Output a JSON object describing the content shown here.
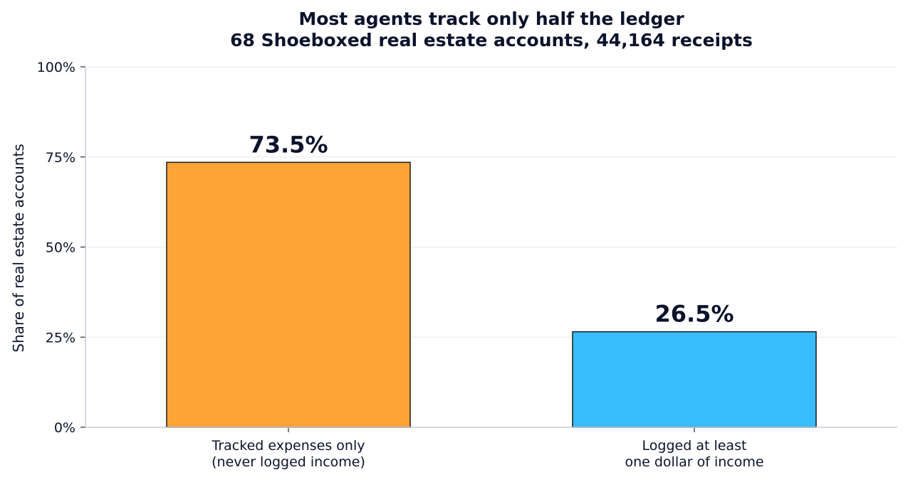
{
  "chart_data": {
    "type": "bar",
    "title": "Most agents track only half the ledger",
    "subtitle": "68 Shoeboxed real estate accounts, 44,164 receipts",
    "xlabel": "",
    "ylabel": "Share of real estate accounts",
    "ylim": [
      0,
      100
    ],
    "yticks": [
      0,
      25,
      50,
      75,
      100
    ],
    "ytick_labels": [
      "0%",
      "25%",
      "50%",
      "75%",
      "100%"
    ],
    "categories": [
      [
        "Tracked expenses only",
        "(never logged income)"
      ],
      [
        "Logged at least",
        "one dollar of income"
      ]
    ],
    "values": [
      73.5,
      26.5
    ],
    "value_labels": [
      "73.5%",
      "26.5%"
    ],
    "colors": [
      "#FFA537",
      "#38BDFF"
    ],
    "grid": "horizontal",
    "legend": "none"
  }
}
